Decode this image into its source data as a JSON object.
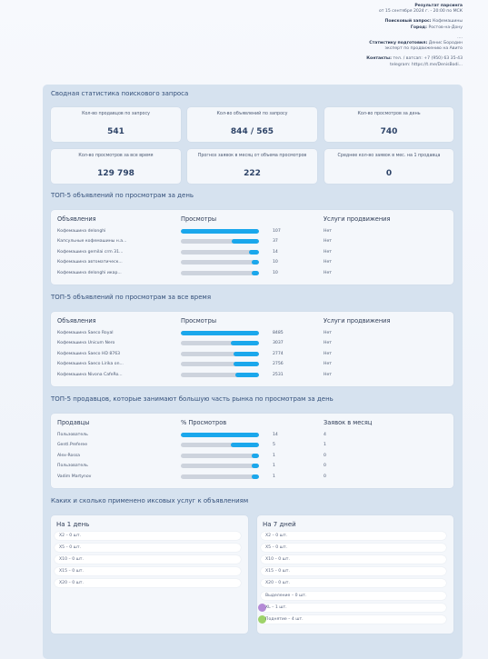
{
  "header": {
    "report_title": "Результат парсинга",
    "report_date": "от 15 сентября 2024 г. - 20:00 по МСК",
    "query_label": "Поисковый запрос:",
    "query_value": "Кофемашины",
    "city_label": "Город:",
    "city_value": "Ростов-на-Дону",
    "dots": "....",
    "author_label": "Статистику подготовил:",
    "author_value": "Денис Бородин",
    "author_role": "эксперт по продвижению на Авито",
    "contacts_label": "Контакты:",
    "contacts_value": "тел. / ватсап: +7 (950) 63 35-43",
    "telegram": "telegram: https://t.me/DenisBodi..."
  },
  "summary": {
    "title": "Сводная статистика поискового запроса",
    "stats": [
      {
        "label": "Кол-во продавцов по запросу",
        "value": "541"
      },
      {
        "label": "Кол-во объявлений по запросу",
        "value": "844 / 565"
      },
      {
        "label": "Кол-во просмотров за день",
        "value": "740"
      },
      {
        "label": "Кол-во просмотров за все время",
        "value": "129 798"
      },
      {
        "label": "Прогноз заявок в месяц от объема просмотров",
        "value": "222"
      },
      {
        "label": "Среднее кол-во заявок в мес. на 1 продавца",
        "value": "0"
      }
    ]
  },
  "top_day": {
    "title": "ТОП-5 объявлений по просмотрам за день",
    "headers": [
      "Объявления",
      "Просмотры",
      "Услуги продвижения"
    ],
    "rows": [
      {
        "name": "Кофемашина delonghi",
        "views": "107",
        "fill": 1.0,
        "promo": "Нет"
      },
      {
        "name": "Капсульные кофемашины н.а...",
        "views": "37",
        "fill": 0.35,
        "promo": "Нет"
      },
      {
        "name": "Кофемашина gemilai crm 31...",
        "views": "14",
        "fill": 0.13,
        "promo": "Нет"
      },
      {
        "name": "Кофемашина автоматическ...",
        "views": "10",
        "fill": 0.09,
        "promo": "Нет"
      },
      {
        "name": "Кофемашина delonghi икар...",
        "views": "10",
        "fill": 0.09,
        "promo": "Нет"
      }
    ]
  },
  "top_all": {
    "title": "ТОП-5 объявлений по просмотрам за все время",
    "headers": [
      "Объявления",
      "Просмотры",
      "Услуги продвижения"
    ],
    "rows": [
      {
        "name": "Кофемашина Saeco Royal",
        "views": "8485",
        "fill": 1.0,
        "promo": "Нет"
      },
      {
        "name": "Кофемашина Unicum Nero",
        "views": "3037",
        "fill": 0.36,
        "promo": "Нет"
      },
      {
        "name": "Кофемашина Saeco HD 8763",
        "views": "2774",
        "fill": 0.33,
        "promo": "Нет"
      },
      {
        "name": "Кофемашина Saeco Lirika on...",
        "views": "2756",
        "fill": 0.32,
        "promo": "Нет"
      },
      {
        "name": "Кофемашина Nivona CafeRo...",
        "views": "2531",
        "fill": 0.3,
        "promo": "Нет"
      }
    ]
  },
  "top_sellers": {
    "title": "ТОП-5 продавцов, которые занимают большую часть рынка по просмотрам за день",
    "headers": [
      "Продавцы",
      "% Просмотров",
      "Заявок в месяц"
    ],
    "rows": [
      {
        "name": "Пользователь",
        "views": "14",
        "fill": 1.0,
        "promo": "4"
      },
      {
        "name": "Gentl.Preferee",
        "views": "5",
        "fill": 0.36,
        "promo": "1"
      },
      {
        "name": "Alex-Rossa",
        "views": "1",
        "fill": 0.07,
        "promo": "0"
      },
      {
        "name": "Пользователь",
        "views": "1",
        "fill": 0.07,
        "promo": "0"
      },
      {
        "name": "Vadim Martynov",
        "views": "1",
        "fill": 0.07,
        "promo": "0"
      }
    ]
  },
  "services": {
    "title": "Каких и сколько применено иксовых услуг к объявлениям",
    "day": {
      "title": "На 1 день",
      "items": [
        "Х2 – 0 шт.",
        "Х5 – 0 шт.",
        "Х10 – 0 шт.",
        "Х15 – 0 шт.",
        "Х20 – 0 шт."
      ]
    },
    "week": {
      "title": "На 7 дней",
      "items": [
        "Х2 – 0 шт.",
        "Х5 – 0 шт.",
        "Х10 – 0 шт.",
        "Х15 – 0 шт.",
        "Х20 – 0 шт.",
        "Выделение – 0 шт.",
        "XL – 1 шт.",
        "Поднятие – 4 шт."
      ]
    },
    "dot_colors": {
      "xl": "#b48ad6",
      "lift": "#9ed36a"
    }
  }
}
